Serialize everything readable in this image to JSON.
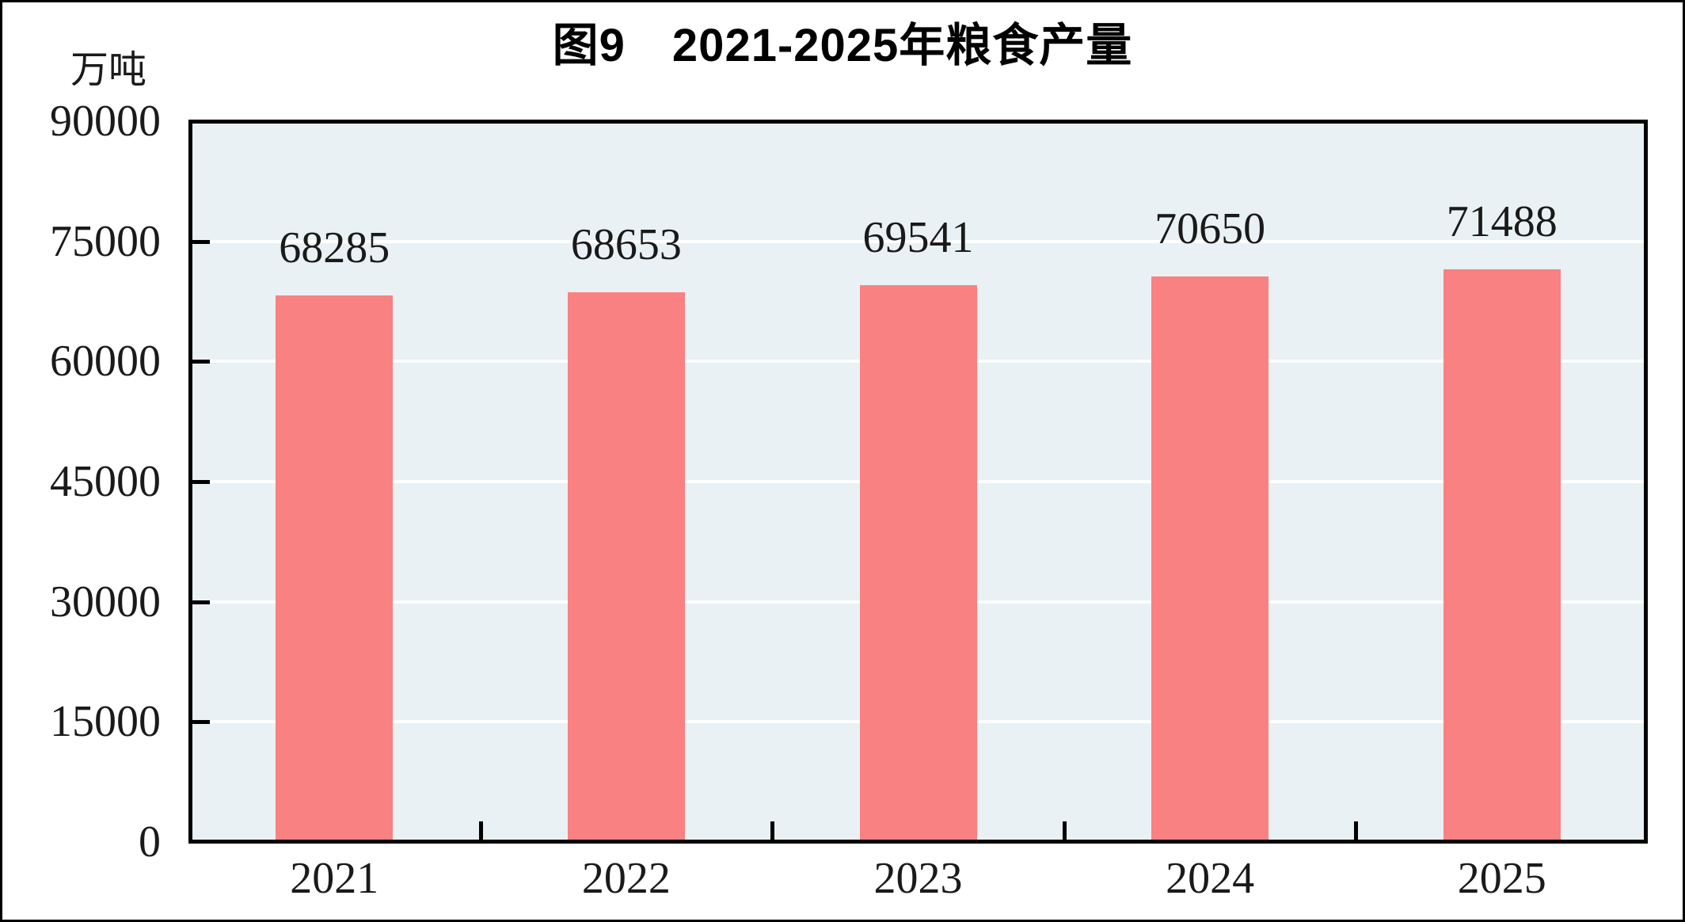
{
  "chart_data": {
    "type": "bar",
    "title": "图9　2021-2025年粮食产量",
    "unit": "万吨",
    "categories": [
      "2021",
      "2022",
      "2023",
      "2024",
      "2025"
    ],
    "values": [
      68285,
      68653,
      69541,
      70650,
      71488
    ],
    "data_labels_shown": true,
    "xlabel": "",
    "ylabel": "万吨",
    "ylim": [
      0,
      90000
    ],
    "yticks": [
      0,
      15000,
      30000,
      45000,
      60000,
      75000,
      90000
    ],
    "grid": "horizontal",
    "legend": "none",
    "colors": {
      "bar": "#fa8181",
      "plot_background": "#e9f1f4",
      "gridline": "#ffffff",
      "axis": "#000000",
      "text": "#1a1a1a"
    }
  }
}
